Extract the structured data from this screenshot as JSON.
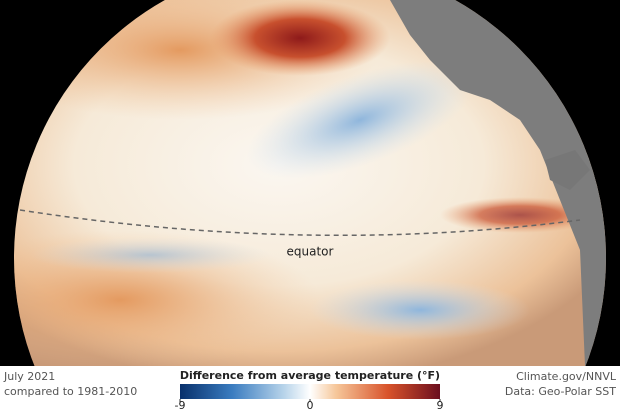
{
  "map": {
    "annotation": "equator"
  },
  "footer": {
    "date": "July 2021",
    "baseline": "compared to 1981-2010",
    "credit": "Climate.gov/NNVL",
    "source": "Data: Geo-Polar SST"
  },
  "colorbar": {
    "title": "Difference from average temperature (°F)",
    "lim": [
      -9,
      9
    ],
    "ticks": [
      -9,
      0,
      9
    ]
  }
}
